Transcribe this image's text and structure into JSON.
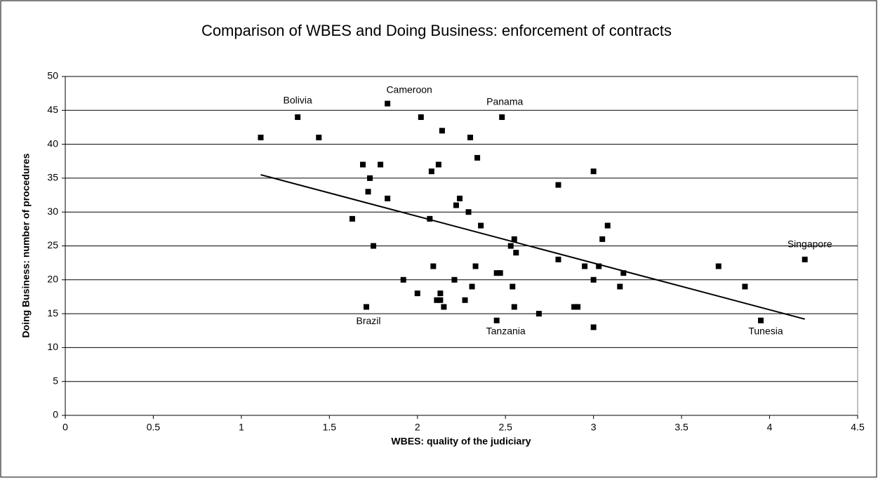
{
  "chart_data": {
    "type": "scatter",
    "title": "Comparison of WBES and Doing Business: enforcement of contracts",
    "x_label": "WBES: quality of the judiciary",
    "y_label": "Doing Business: number of procedures",
    "color": "#000000",
    "x": [
      1.11,
      1.32,
      1.44,
      1.83,
      2.02,
      2.14,
      2.3,
      2.48,
      1.69,
      1.73,
      1.72,
      1.83,
      1.79,
      2.08,
      2.12,
      2.34,
      2.24,
      2.22,
      2.29,
      1.63,
      2.07,
      2.36,
      1.75,
      2.8,
      3.0,
      3.08,
      3.05,
      2.55,
      2.53,
      2.56,
      2.8,
      4.2,
      3.71,
      2.09,
      2.33,
      2.95,
      3.03,
      2.45,
      2.47,
      3.17,
      1.92,
      2.21,
      3.0,
      2.31,
      2.54,
      3.15,
      3.86,
      2.0,
      2.13,
      2.11,
      2.13,
      2.27,
      1.71,
      2.15,
      2.55,
      2.89,
      2.91,
      2.69,
      2.45,
      3.95,
      3.0
    ],
    "values": [
      41,
      44,
      41,
      46,
      44,
      42,
      41,
      44,
      37,
      35,
      33,
      32,
      37,
      36,
      37,
      38,
      32,
      31,
      30,
      29,
      29,
      28,
      25,
      34,
      36,
      28,
      26,
      26,
      25,
      24,
      23,
      23,
      22,
      22,
      22,
      22,
      22,
      21,
      21,
      21,
      20,
      20,
      20,
      19,
      19,
      19,
      19,
      18,
      18,
      17,
      17,
      17,
      16,
      16,
      16,
      16,
      16,
      15,
      14,
      14,
      13
    ],
    "trendline": {
      "x": [
        1.11,
        4.2
      ],
      "y": [
        35.5,
        14.2
      ]
    },
    "annotations": [
      "Bolivia",
      "Cameroon",
      "Panama",
      "Singapore",
      "Brazil",
      "Tanzania",
      "Tunesia"
    ],
    "xlim": [
      0,
      4.5
    ],
    "xticks": [
      0,
      0.5,
      1,
      1.5,
      2,
      2.5,
      3,
      3.5,
      4,
      4.5
    ],
    "ylim": [
      0,
      50
    ],
    "yticks": [
      0,
      5,
      10,
      15,
      20,
      25,
      30,
      35,
      40,
      45,
      50
    ],
    "grid": true
  }
}
